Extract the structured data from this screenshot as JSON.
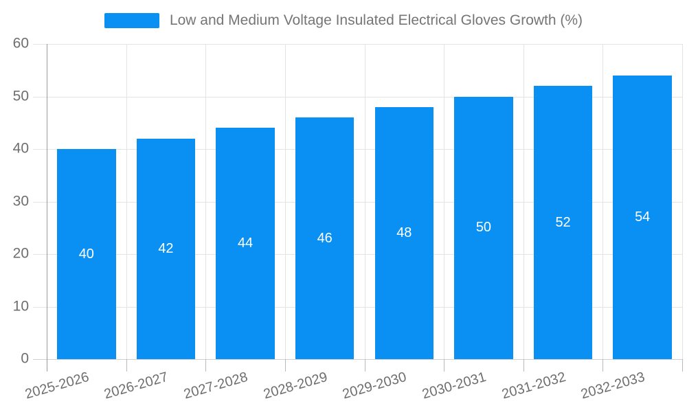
{
  "chart_data": {
    "type": "bar",
    "title": "Low and Medium Voltage Insulated Electrical Gloves Growth (%)",
    "categories": [
      "2025-2026",
      "2026-2027",
      "2027-2028",
      "2028-2029",
      "2029-2030",
      "2030-2031",
      "2031-2032",
      "2032-2033"
    ],
    "values": [
      40,
      42,
      44,
      46,
      48,
      50,
      52,
      54
    ],
    "xlabel": "",
    "ylabel": "",
    "ylim": [
      0,
      60
    ],
    "yticks": [
      0,
      10,
      20,
      30,
      40,
      50,
      60
    ],
    "grid": true,
    "legend_position": "top-center",
    "value_label_position": "inside-center"
  },
  "legend": {
    "label": "Low and Medium Voltage Insulated Electrical Gloves Growth (%)"
  },
  "colors": {
    "bar": "#0a8ff2",
    "grid_line": "#e3e3e3",
    "y_axis_line": "#999999",
    "x_axis_line": "#cfcfcf",
    "bottom_tick": "#b9b9b9",
    "tick_label": "#6e6e6e",
    "legend_text": "#757575",
    "value_label": "#ffffff",
    "background": "#ffffff"
  }
}
